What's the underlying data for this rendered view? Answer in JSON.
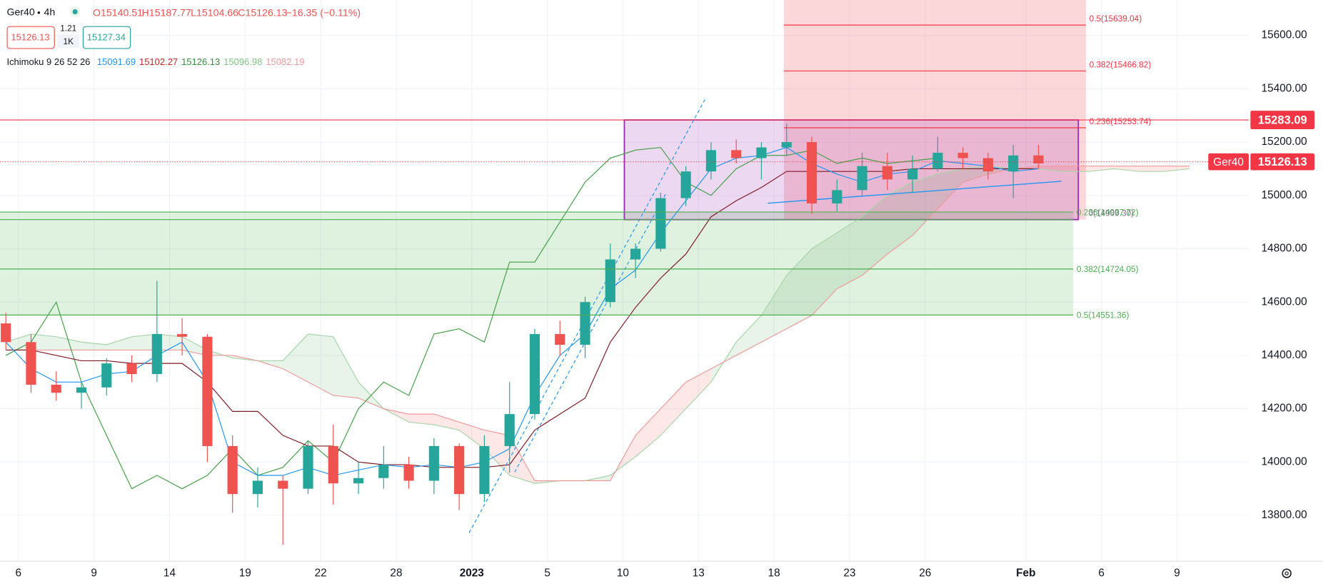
{
  "header": {
    "symbol": "Ger40",
    "timeframe": "4h",
    "ohlc": [
      "O15140.51",
      "H15187.77",
      "L15104.66",
      "C15126.13"
    ],
    "change": "−16.35 (−0.11%)",
    "bid": "15126.13",
    "spread": "1.21",
    "volume": "1K",
    "ask": "15127.34",
    "indicator": "Ichimoku 9 26 52 26",
    "indicator_values": [
      {
        "text": "15091.69",
        "color": "#2196f3"
      },
      {
        "text": "15102.27",
        "color": "#c62828"
      },
      {
        "text": "15126.13",
        "color": "#388e3c"
      },
      {
        "text": "15096.98",
        "color": "#81c784"
      },
      {
        "text": "15082.19",
        "color": "#ef9a9a"
      }
    ]
  },
  "chart_data": {
    "type": "candlestick",
    "grid": true,
    "up_color": "#26a69a",
    "down_color": "#ef5350",
    "categories": [
      null,
      "6",
      null,
      null,
      "9",
      null,
      null,
      "14",
      null,
      null,
      "19",
      null,
      null,
      "22",
      null,
      null,
      "28",
      null,
      null,
      "2023",
      null,
      null,
      "5",
      null,
      null,
      "10",
      null,
      null,
      "13",
      null,
      null,
      "18",
      null,
      null,
      "23",
      null,
      null,
      "26",
      null,
      null,
      null,
      "Feb",
      null,
      null,
      "6",
      null,
      null,
      "9"
    ],
    "open": [
      14520,
      14450,
      14290,
      14260,
      14280,
      14370,
      14330,
      14480,
      14470,
      14060,
      13880,
      13930,
      13900,
      14060,
      13920,
      13940,
      13990,
      13930,
      14060,
      13880,
      14060,
      14180,
      14480,
      14440,
      14600,
      14760,
      14800,
      14990,
      15090,
      15170,
      15140,
      15180,
      15200,
      14970,
      15020,
      15110,
      15060,
      15100,
      15160,
      15140,
      15090,
      15150,
      null,
      null,
      null,
      null,
      null,
      null
    ],
    "high": [
      14560,
      14480,
      14340,
      14300,
      14390,
      14400,
      14680,
      14540,
      14480,
      14100,
      13980,
      13950,
      14080,
      14140,
      14000,
      14060,
      14020,
      14090,
      14070,
      14100,
      14300,
      14500,
      14530,
      14620,
      14820,
      14820,
      15010,
      15110,
      15200,
      15210,
      15200,
      15270,
      15220,
      15060,
      15160,
      15160,
      15150,
      15220,
      15180,
      15160,
      15190,
      15190,
      null,
      null,
      null,
      null,
      null,
      null
    ],
    "low": [
      14420,
      14260,
      14230,
      14200,
      14250,
      14300,
      14300,
      14400,
      14000,
      13810,
      13830,
      13690,
      13880,
      13840,
      13880,
      13900,
      13900,
      13880,
      13820,
      13850,
      13960,
      14160,
      14400,
      14390,
      14580,
      14690,
      14790,
      14960,
      15060,
      15120,
      15060,
      15150,
      14930,
      14940,
      15000,
      15020,
      15010,
      15090,
      15100,
      15060,
      14990,
      15100,
      null,
      null,
      null,
      null,
      null,
      null
    ],
    "close": [
      14450,
      14290,
      14260,
      14280,
      14370,
      14330,
      14480,
      14470,
      14060,
      13880,
      13930,
      13900,
      14060,
      13920,
      13940,
      13990,
      13930,
      14060,
      13880,
      14060,
      14180,
      14480,
      14440,
      14600,
      14760,
      14800,
      14990,
      15090,
      15170,
      15140,
      15180,
      15200,
      14970,
      15020,
      15110,
      15060,
      15100,
      15160,
      15140,
      15090,
      15150,
      15120,
      null,
      null,
      null,
      null,
      null,
      null
    ],
    "ichimoku": {
      "tenkan": {
        "color": "#2196f3",
        "values": [
          14450,
          14350,
          14300,
          14300,
          14330,
          14340,
          14400,
          14450,
          14300,
          14000,
          13950,
          13950,
          13980,
          13950,
          13970,
          13990,
          13980,
          13990,
          13980,
          14000,
          14050,
          14250,
          14400,
          14480,
          14650,
          14720,
          14860,
          14980,
          15100,
          15140,
          15150,
          15180,
          15120,
          15080,
          15050,
          15080,
          15090,
          15130,
          15120,
          15110,
          15090,
          15100,
          null,
          null,
          null,
          null,
          null,
          null
        ]
      },
      "kijun": {
        "color": "#801922",
        "values": [
          14420,
          14420,
          14400,
          14380,
          14380,
          14370,
          14370,
          14370,
          14300,
          14190,
          14190,
          14100,
          14060,
          14060,
          14000,
          13990,
          13990,
          13980,
          13980,
          13980,
          13990,
          14120,
          14180,
          14240,
          14450,
          14580,
          14690,
          14780,
          14920,
          14980,
          15030,
          15090,
          15090,
          15090,
          15090,
          15090,
          15100,
          15100,
          15100,
          15100,
          15100,
          15100,
          null,
          null,
          null,
          null,
          null,
          null
        ]
      },
      "chikou": {
        "color": "#43a047",
        "values": [
          14400,
          14450,
          14600,
          14300,
          14100,
          13900,
          13950,
          13900,
          13950,
          14050,
          13950,
          13980,
          14080,
          14000,
          14200,
          14300,
          14250,
          14480,
          14500,
          14450,
          14750,
          14750,
          14900,
          15050,
          15140,
          15170,
          15180,
          15050,
          15000,
          15100,
          15150,
          15150,
          15170,
          15120,
          15140,
          15120,
          15130,
          15140,
          null,
          null,
          null,
          null,
          null,
          null,
          null,
          null,
          null,
          null
        ]
      },
      "span_a": {
        "color": "#a5d6a7",
        "values": [
          14450,
          14480,
          14470,
          14450,
          14440,
          14470,
          14480,
          14470,
          14420,
          14390,
          14380,
          14380,
          14480,
          14470,
          14300,
          14200,
          14150,
          14140,
          14120,
          14050,
          13950,
          13920,
          13930,
          13930,
          13950,
          14020,
          14100,
          14200,
          14300,
          14450,
          14550,
          14700,
          14800,
          14860,
          14920,
          15000,
          15050,
          15080,
          15100,
          15110,
          15100,
          15100,
          15090,
          15090,
          15100,
          15090,
          15090,
          15100
        ]
      },
      "span_b": {
        "color": "#ef9a9a",
        "values": [
          14420,
          14420,
          14420,
          14420,
          14420,
          14420,
          14420,
          14420,
          14400,
          14400,
          14380,
          14350,
          14300,
          14250,
          14240,
          14200,
          14180,
          14180,
          14150,
          14120,
          14100,
          13930,
          13930,
          13930,
          13930,
          14100,
          14200,
          14300,
          14350,
          14400,
          14450,
          14500,
          14550,
          14650,
          14700,
          14780,
          14850,
          14950,
          15050,
          15080,
          15100,
          15110,
          15110,
          15110,
          15110,
          15110,
          15110,
          15110
        ]
      },
      "cloud_up_color": "rgba(67,160,71,0.12)",
      "cloud_down_color": "rgba(244,67,54,0.12)"
    },
    "fib_up": {
      "color": "#f23645",
      "levels": [
        {
          "value": 15639.04,
          "label": "0.5(15639.04)"
        },
        {
          "value": 15466.82,
          "label": "0.382(15466.82)"
        },
        {
          "value": 15253.74,
          "label": "0.236(15253.74)"
        }
      ]
    },
    "fib_down": {
      "color": "#4caf50",
      "levels": [
        {
          "value": 14937.72,
          "label": "0.236(14937.72)"
        },
        {
          "value": 14909.3,
          "label": "0(14909.30)"
        },
        {
          "value": 14724.05,
          "label": "0.382(14724.05)"
        },
        {
          "value": 14551.36,
          "label": "0.5(14551.36)"
        }
      ]
    },
    "level_line": {
      "value": 15283.09,
      "color": "#f23645"
    },
    "last_price": {
      "name": "Ger40",
      "value": 15126.13,
      "color": "#f23645"
    },
    "ylim": [
      13630,
      15733
    ],
    "yticks": [
      {
        "value": 13800,
        "label": "13800.00"
      },
      {
        "value": 14000,
        "label": "14000.00"
      },
      {
        "value": 14200,
        "label": "14200.00"
      },
      {
        "value": 14400,
        "label": "14400.00"
      },
      {
        "value": 14600,
        "label": "14600.00"
      },
      {
        "value": 14800,
        "label": "14800.00"
      },
      {
        "value": 15000,
        "label": "15000.00"
      },
      {
        "value": 15200,
        "label": "15200.00"
      },
      {
        "value": 15400,
        "label": "15400.00"
      },
      {
        "value": 15600,
        "label": "15600.00"
      }
    ]
  }
}
